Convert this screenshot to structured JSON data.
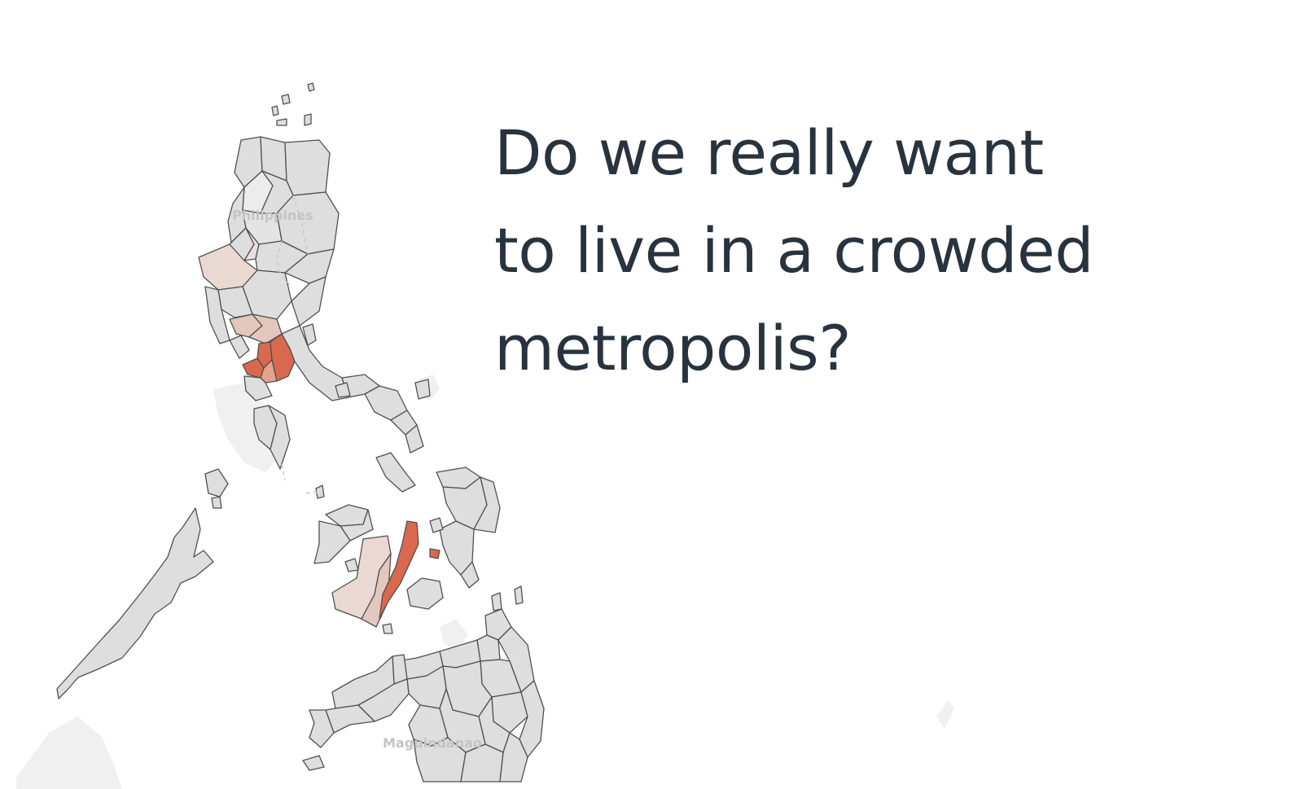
{
  "headline": {
    "lines": [
      "Do we really want",
      "to live in a crowded",
      "metropolis?"
    ]
  },
  "map": {
    "labels": {
      "country": "Philippines",
      "region": "Maguindanao"
    },
    "colors": {
      "no_data": "#dedede",
      "land_background": "#f0f0f0",
      "low": "#ead8d3",
      "mid_low": "#e4c7bd",
      "mid": "#e3a38f",
      "high": "#d9694e",
      "border": "#505050",
      "text": "#28333e"
    }
  }
}
